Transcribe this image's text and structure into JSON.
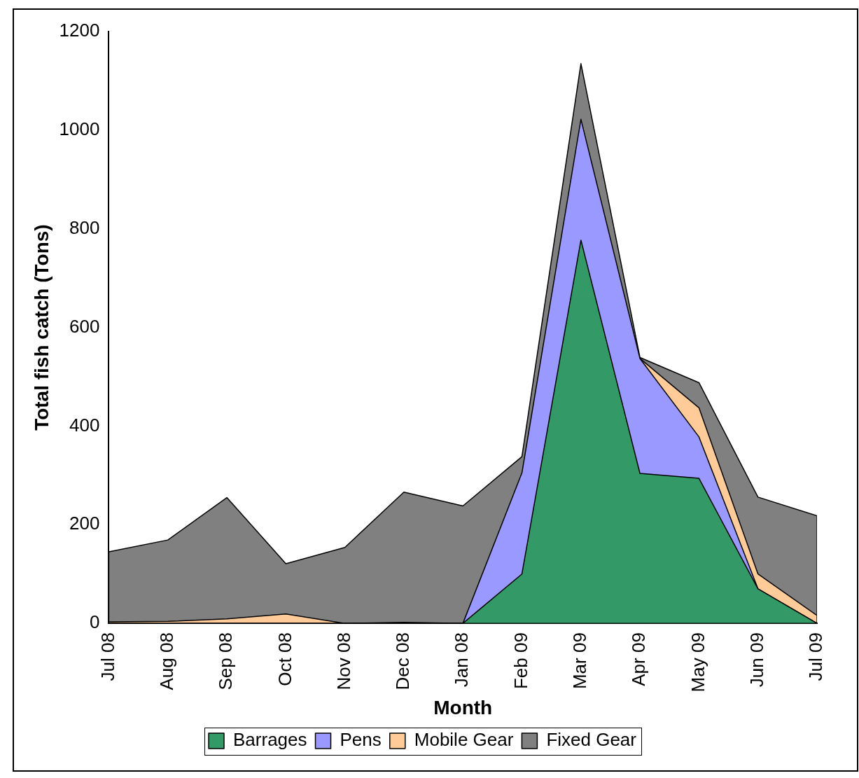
{
  "chart_data": {
    "type": "area",
    "stacked": true,
    "xlabel": "Month",
    "ylabel": "Total fish catch (Tons)",
    "categories": [
      "Jul 08",
      "Aug 08",
      "Sep 08",
      "Oct 08",
      "Nov 08",
      "Dec 08",
      "Jan 08",
      "Feb 09",
      "Mar 09",
      "Apr 09",
      "May 09",
      "Jun 09",
      "Jul 09"
    ],
    "series": [
      {
        "name": "Barrages",
        "color": "#339966",
        "values": [
          0,
          0,
          0,
          0,
          0,
          0,
          0,
          100,
          777,
          304,
          294,
          70,
          0
        ]
      },
      {
        "name": "Pens",
        "color": "#9999ff",
        "values": [
          0,
          0,
          0,
          0,
          0,
          0,
          0,
          205,
          245,
          233,
          84,
          0,
          0
        ]
      },
      {
        "name": "Mobile Gear",
        "color": "#ffcc99",
        "values": [
          3,
          4,
          9,
          19,
          0,
          2,
          0,
          null,
          null,
          0,
          59,
          30,
          16
        ]
      },
      {
        "name": "Fixed Gear",
        "color": "#808080",
        "values": [
          142,
          165,
          246,
          102,
          154,
          264,
          238,
          33,
          113,
          2,
          51,
          156,
          202
        ]
      }
    ],
    "ylim": [
      0,
      1200
    ],
    "yticks": [
      0,
      200,
      400,
      600,
      800,
      1000,
      1200
    ],
    "legend": "bottom"
  }
}
